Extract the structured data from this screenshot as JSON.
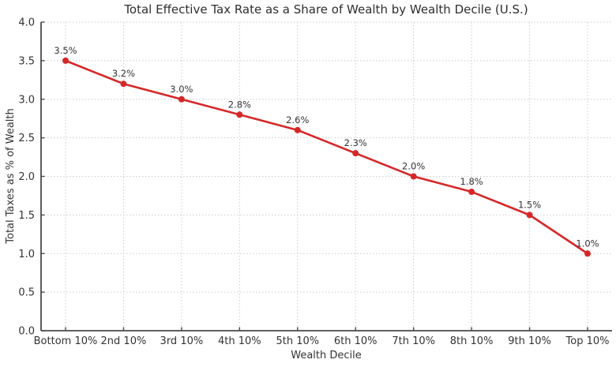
{
  "chart_data": {
    "type": "line",
    "title": "Total Effective Tax Rate as a Share of Wealth by Wealth Decile (U.S.)",
    "xlabel": "Wealth Decile",
    "ylabel": "Total Taxes as % of Wealth",
    "categories": [
      "Bottom 10%",
      "2nd 10%",
      "3rd 10%",
      "4th 10%",
      "5th 10%",
      "6th 10%",
      "7th 10%",
      "8th 10%",
      "9th 10%",
      "Top 10%"
    ],
    "values": [
      3.5,
      3.2,
      3.0,
      2.8,
      2.6,
      2.3,
      2.0,
      1.8,
      1.5,
      1.0
    ],
    "point_labels": [
      "3.5%",
      "3.2%",
      "3.0%",
      "2.8%",
      "2.6%",
      "2.3%",
      "2.0%",
      "1.8%",
      "1.5%",
      "1.0%"
    ],
    "ylim": [
      0.0,
      4.0
    ],
    "ytick_step": 0.5,
    "ytick_labels": [
      "0.0",
      "0.5",
      "1.0",
      "1.5",
      "2.0",
      "2.5",
      "3.0",
      "3.5",
      "4.0"
    ],
    "grid": true,
    "legend": "none",
    "marker": "circle",
    "colors": {
      "line": "#d62728",
      "marker": "#d62728",
      "grid": "#cccccc",
      "axis": "#4a4a4a",
      "text": "#333333",
      "background": "#ffffff"
    }
  }
}
